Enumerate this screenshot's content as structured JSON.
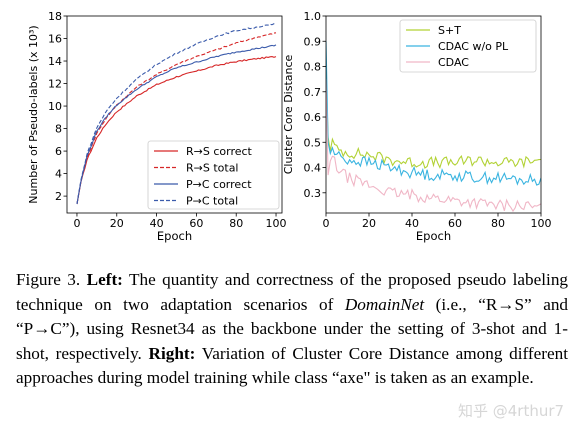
{
  "chart_data": [
    {
      "type": "line",
      "xlabel": "Epoch",
      "ylabel": "Number of Pseudo-labels (x 10³)",
      "xlim": [
        -5,
        103
      ],
      "ylim": [
        0.5,
        18
      ],
      "xticks": [
        "0",
        "20",
        "40",
        "60",
        "80",
        "100"
      ],
      "yticks": [
        "2",
        "4",
        "6",
        "8",
        "10",
        "12",
        "14",
        "16",
        "18"
      ],
      "legend_position": "lower-right",
      "grid": false,
      "series": [
        {
          "name": "R→S correct",
          "color": "#d62728",
          "style": "solid",
          "x": [
            0,
            2,
            5,
            10,
            15,
            20,
            30,
            40,
            50,
            60,
            70,
            80,
            90,
            100
          ],
          "y": [
            1.3,
            3.2,
            5.2,
            7.2,
            8.5,
            9.5,
            10.9,
            11.9,
            12.6,
            13.1,
            13.6,
            13.95,
            14.2,
            14.4
          ]
        },
        {
          "name": "R→S total",
          "color": "#d62728",
          "style": "dashed",
          "x": [
            0,
            2,
            5,
            10,
            15,
            20,
            30,
            40,
            50,
            60,
            70,
            80,
            90,
            100
          ],
          "y": [
            1.3,
            3.3,
            5.4,
            7.6,
            9.0,
            10.1,
            11.7,
            12.8,
            13.7,
            14.4,
            15.0,
            15.6,
            16.1,
            16.5
          ]
        },
        {
          "name": "P→C correct",
          "color": "#3b5bab",
          "style": "solid",
          "x": [
            0,
            2,
            5,
            10,
            15,
            20,
            30,
            40,
            50,
            60,
            70,
            80,
            90,
            100
          ],
          "y": [
            1.3,
            3.3,
            5.5,
            7.8,
            9.1,
            10.1,
            11.5,
            12.6,
            13.4,
            13.9,
            14.4,
            14.8,
            15.1,
            15.4
          ]
        },
        {
          "name": "P→C total",
          "color": "#3b5bab",
          "style": "dashed",
          "x": [
            0,
            2,
            5,
            10,
            15,
            20,
            30,
            40,
            50,
            60,
            70,
            80,
            90,
            100
          ],
          "y": [
            1.3,
            3.4,
            5.7,
            8.1,
            9.6,
            10.7,
            12.4,
            13.7,
            14.7,
            15.5,
            16.2,
            16.7,
            17.0,
            17.3
          ]
        }
      ]
    },
    {
      "type": "line",
      "xlabel": "Epoch",
      "ylabel": "Cluster Core Distance",
      "xlim": [
        0,
        100
      ],
      "ylim": [
        0.22,
        1.0
      ],
      "xticks": [
        "0",
        "20",
        "40",
        "60",
        "80",
        "100"
      ],
      "yticks": [
        "0.3",
        "0.4",
        "0.5",
        "0.6",
        "0.7",
        "0.8",
        "0.9",
        "1.0"
      ],
      "legend_position": "top-right",
      "grid": false,
      "series": [
        {
          "name": "S+T",
          "color": "#b2d235",
          "x": [
            0,
            1,
            2,
            3,
            5,
            10,
            20,
            30,
            40,
            50,
            60,
            70,
            80,
            90,
            100
          ],
          "y": [
            0.78,
            0.52,
            0.48,
            0.5,
            0.47,
            0.46,
            0.45,
            0.43,
            0.42,
            0.42,
            0.42,
            0.43,
            0.42,
            0.42,
            0.43
          ]
        },
        {
          "name": "CDAC w/o PL",
          "color": "#3ab4e0",
          "x": [
            0,
            1,
            2,
            3,
            5,
            10,
            20,
            30,
            40,
            50,
            60,
            70,
            80,
            90,
            100
          ],
          "y": [
            0.9,
            0.5,
            0.46,
            0.47,
            0.45,
            0.43,
            0.42,
            0.4,
            0.38,
            0.37,
            0.37,
            0.36,
            0.36,
            0.35,
            0.35
          ]
        },
        {
          "name": "CDAC",
          "color": "#f0b6c6",
          "x": [
            0,
            1,
            2,
            3,
            5,
            10,
            20,
            30,
            40,
            50,
            60,
            70,
            80,
            90,
            100
          ],
          "y": [
            0.75,
            0.37,
            0.42,
            0.44,
            0.4,
            0.36,
            0.33,
            0.3,
            0.29,
            0.28,
            0.27,
            0.26,
            0.25,
            0.25,
            0.24
          ]
        }
      ]
    }
  ],
  "caption": {
    "label": "Figure 3.",
    "left_head": "Left:",
    "left_text_1": "The quantity and correctness of the proposed pseudo labeling technique on two adaptation scenarios of",
    "domainnet": "DomainNet",
    "left_text_2": "(i.e., “R→S” and “P→C”), using Resnet34 as the backbone under the setting of 3-shot and 1-shot, respectively.",
    "right_head": "Right:",
    "right_text": "Variation of Cluster Core Distance among different approaches during model training while class “axe\" is taken as an example."
  },
  "watermark": "知乎 @4rthur7"
}
